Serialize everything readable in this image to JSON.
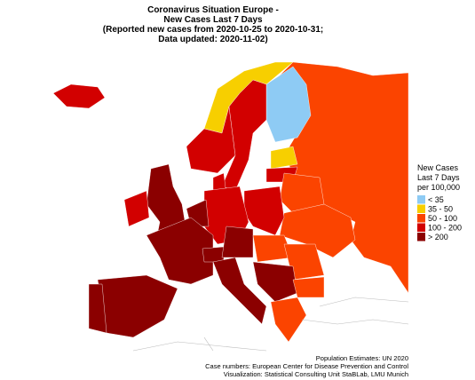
{
  "title": [
    "Coronavirus Situation Europe -",
    "New Cases Last 7 Days",
    "(Reported new cases from 2020-10-25 to 2020-10-31;",
    "Data updated: 2020-11-02)"
  ],
  "legend": {
    "title": [
      "New Cases",
      "Last 7 Days",
      "per 100,000"
    ],
    "items": [
      {
        "label": "< 35",
        "color": "#8ecbf4"
      },
      {
        "label": "35 - 50",
        "color": "#f7cf00"
      },
      {
        "label": "50 - 100",
        "color": "#fb4400"
      },
      {
        "label": "100 - 200",
        "color": "#d20000"
      },
      {
        "label": "> 200",
        "color": "#8b0000"
      }
    ]
  },
  "notes": [
    "Population Estimates: UN 2020",
    "Case numbers: European Center for Disease Prevention and Control",
    "Visualization: Statistical Consulting Unit StaBLab, LMU Munich"
  ]
}
